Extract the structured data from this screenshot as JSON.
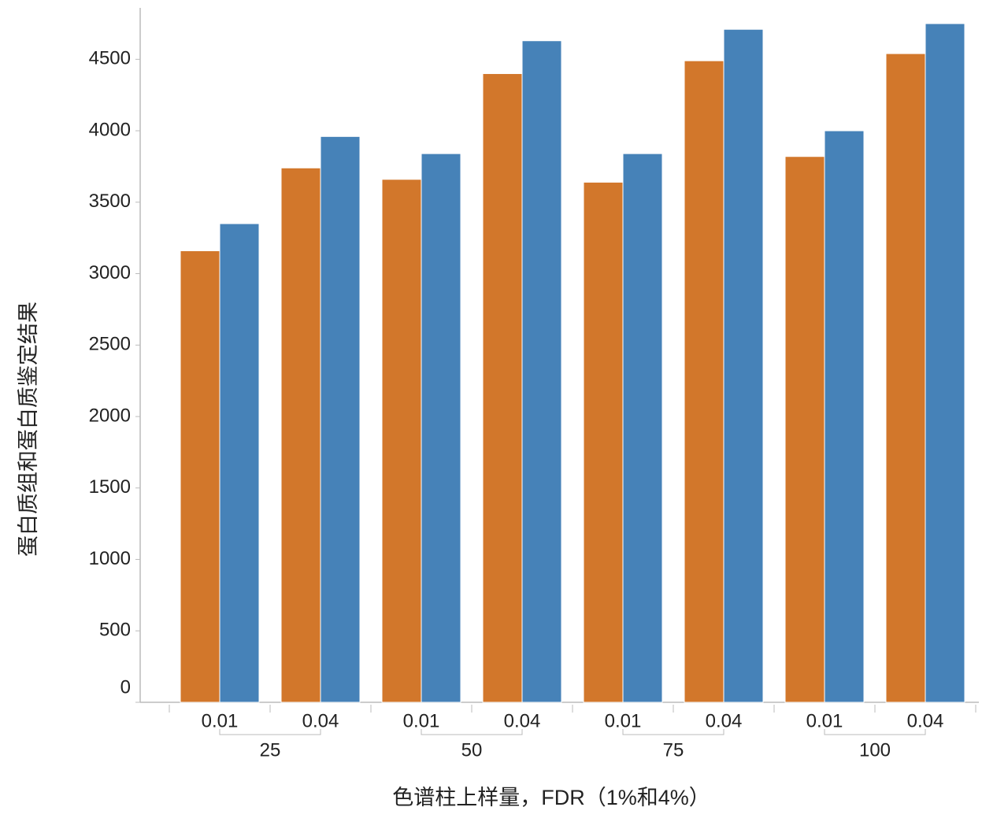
{
  "chart_data": {
    "type": "bar",
    "ylabel": "蛋白质组和蛋白质鉴定结果",
    "xlabel": "色谱柱上样量，FDR（1%和4%）",
    "categories": [
      "0.01",
      "0.04",
      "0.01",
      "0.04",
      "0.01",
      "0.04",
      "0.01",
      "0.04"
    ],
    "groups": [
      "25",
      "50",
      "75",
      "100"
    ],
    "series": [
      {
        "color": "#d2772b",
        "values": [
          3160,
          3740,
          3660,
          4400,
          3640,
          4490,
          3820,
          4540
        ]
      },
      {
        "color": "#4682b8",
        "values": [
          3350,
          3960,
          3840,
          4630,
          3840,
          4710,
          4000,
          4750
        ]
      }
    ],
    "ylim": [
      0,
      4860
    ],
    "yticks": [
      0,
      500,
      1000,
      1500,
      2000,
      2500,
      3000,
      3500,
      4000,
      4500
    ],
    "grid": false
  }
}
